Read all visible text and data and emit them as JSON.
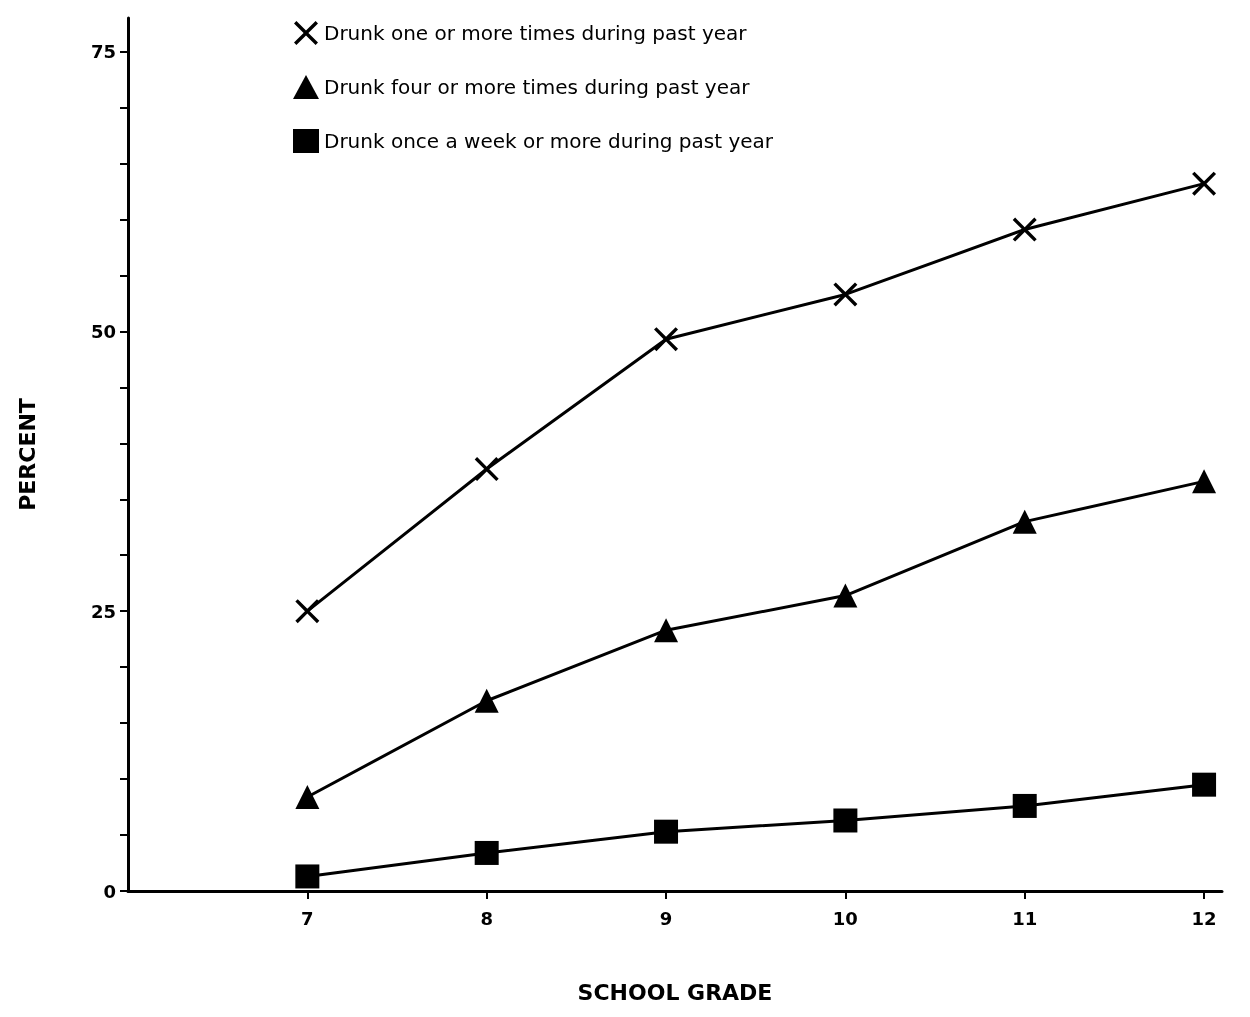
{
  "chart_data": {
    "type": "line",
    "xlabel": "SCHOOL GRADE",
    "ylabel": "PERCENT",
    "x": [
      7,
      8,
      9,
      10,
      11,
      12
    ],
    "xlim": [
      6,
      12.1
    ],
    "xticks": [
      7,
      8,
      9,
      10,
      11,
      12
    ],
    "ylim": [
      0,
      78
    ],
    "yticks": [
      0,
      {
        "value": 5,
        "label": null
      },
      {
        "value": 10,
        "label": null
      },
      {
        "value": 15,
        "label": null
      },
      {
        "value": 20,
        "label": null
      },
      25,
      {
        "value": 30,
        "label": null
      },
      {
        "value": 35,
        "label": null
      },
      {
        "value": 40,
        "label": null
      },
      {
        "value": 45,
        "label": null
      },
      50,
      {
        "value": 55,
        "label": null
      },
      {
        "value": 60,
        "label": null
      },
      {
        "value": 65,
        "label": null
      },
      {
        "value": 70,
        "label": null
      },
      75
    ],
    "grid": false,
    "legend": "top left",
    "line_style": "solid",
    "series": [
      {
        "name": "Drunk one or more times during past year",
        "color": "#000000",
        "marker": "cross",
        "values": [
          25.0,
          37.7,
          49.3,
          53.3,
          59.1,
          63.2
        ]
      },
      {
        "name": "Drunk four or more times during past year",
        "color": "#000000",
        "marker": "triangle",
        "values": [
          8.4,
          17.0,
          23.3,
          26.4,
          33.0,
          36.6
        ]
      },
      {
        "name": "Drunk once a week or more during past year",
        "color": "#000000",
        "marker": "square",
        "values": [
          1.3,
          3.4,
          5.3,
          6.3,
          7.6,
          9.5
        ]
      }
    ]
  }
}
